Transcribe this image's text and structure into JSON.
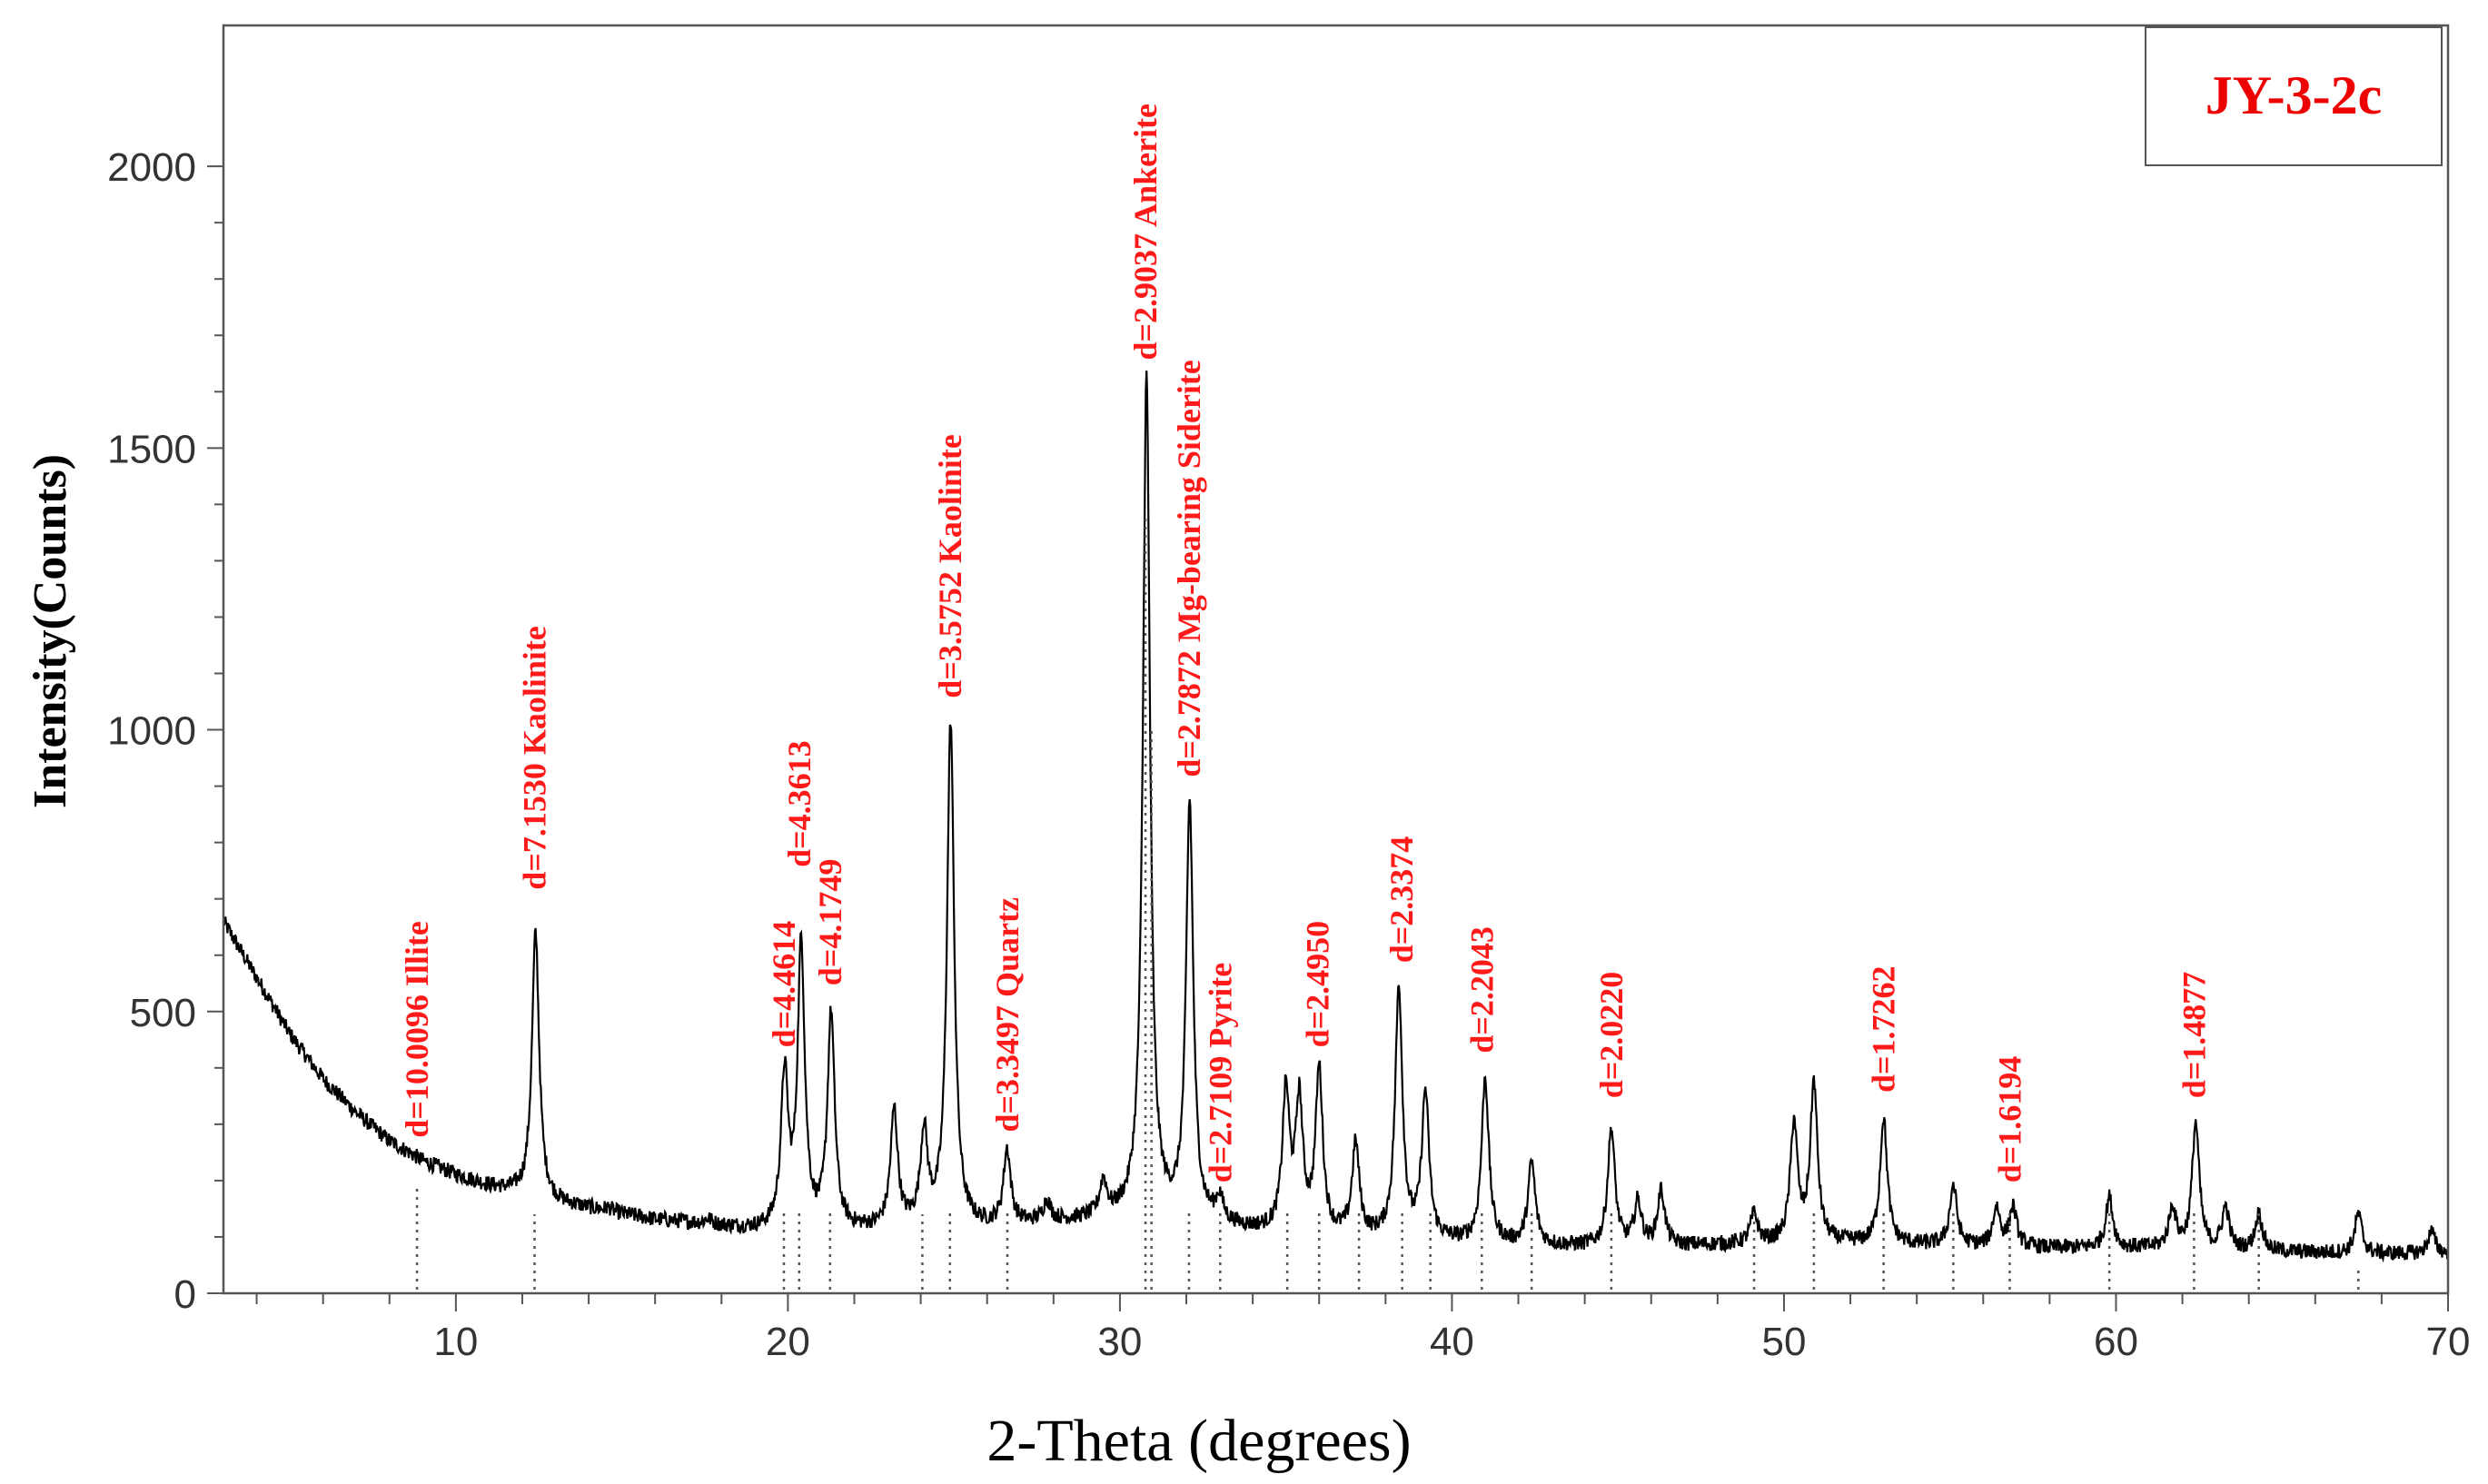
{
  "chart_data": {
    "type": "line",
    "title": "",
    "sample_label": "JY-3-2c",
    "xlabel": "2-Theta (degrees)",
    "ylabel": "Intensity(Counts)",
    "xlim": [
      3,
      70
    ],
    "ylim": [
      0,
      2250
    ],
    "x_ticks": [
      10,
      20,
      30,
      40,
      50,
      60,
      70
    ],
    "y_ticks": [
      0,
      500,
      1000,
      1500,
      2000
    ],
    "grid": false,
    "legend": "none",
    "colors": {
      "line": "#000000",
      "annotation": "#ff1a1a",
      "sample_label": "#ee0000",
      "reference_marks": "#555555"
    },
    "background": [
      [
        3.0,
        660
      ],
      [
        3.5,
        610
      ],
      [
        4.0,
        560
      ],
      [
        5.0,
        460
      ],
      [
        6.0,
        380
      ],
      [
        7.0,
        320
      ],
      [
        8.0,
        270
      ],
      [
        9.0,
        235
      ],
      [
        10.0,
        210
      ],
      [
        11.0,
        190
      ],
      [
        12.0,
        175
      ],
      [
        13.0,
        160
      ],
      [
        14.0,
        150
      ],
      [
        15.0,
        140
      ],
      [
        16.0,
        130
      ],
      [
        17.0,
        125
      ],
      [
        18.0,
        118
      ],
      [
        19.0,
        112
      ],
      [
        20.0,
        110
      ],
      [
        22.0,
        110
      ],
      [
        24.0,
        115
      ],
      [
        26.0,
        115
      ],
      [
        28.0,
        125
      ],
      [
        30.0,
        130
      ],
      [
        32.0,
        125
      ],
      [
        34.0,
        110
      ],
      [
        36.0,
        100
      ],
      [
        38.0,
        95
      ],
      [
        40.0,
        90
      ],
      [
        42.0,
        85
      ],
      [
        44.0,
        82
      ],
      [
        46.0,
        82
      ],
      [
        48.0,
        85
      ],
      [
        50.0,
        88
      ],
      [
        52.0,
        88
      ],
      [
        54.0,
        85
      ],
      [
        56.0,
        82
      ],
      [
        58.0,
        80
      ],
      [
        60.0,
        80
      ],
      [
        62.0,
        78
      ],
      [
        64.0,
        75
      ],
      [
        66.0,
        72
      ],
      [
        68.0,
        70
      ],
      [
        70.0,
        70
      ]
    ],
    "peaks": [
      {
        "x": 8.9,
        "y": 200
      },
      {
        "x": 12.4,
        "y": 640
      },
      {
        "x": 14.6,
        "y": 150
      },
      {
        "x": 17.6,
        "y": 130
      },
      {
        "x": 19.9,
        "y": 380
      },
      {
        "x": 20.4,
        "y": 610
      },
      {
        "x": 21.3,
        "y": 490
      },
      {
        "x": 23.2,
        "y": 320
      },
      {
        "x": 24.1,
        "y": 280
      },
      {
        "x": 24.9,
        "y": 1010
      },
      {
        "x": 26.6,
        "y": 250
      },
      {
        "x": 27.8,
        "y": 160
      },
      {
        "x": 29.5,
        "y": 190
      },
      {
        "x": 30.8,
        "y": 1620
      },
      {
        "x": 32.1,
        "y": 860
      },
      {
        "x": 33.0,
        "y": 160
      },
      {
        "x": 35.0,
        "y": 350
      },
      {
        "x": 35.4,
        "y": 330
      },
      {
        "x": 36.0,
        "y": 390
      },
      {
        "x": 37.1,
        "y": 260
      },
      {
        "x": 38.4,
        "y": 540
      },
      {
        "x": 39.2,
        "y": 350
      },
      {
        "x": 41.0,
        "y": 380
      },
      {
        "x": 42.4,
        "y": 230
      },
      {
        "x": 44.8,
        "y": 290
      },
      {
        "x": 45.6,
        "y": 160
      },
      {
        "x": 46.3,
        "y": 180
      },
      {
        "x": 49.1,
        "y": 140
      },
      {
        "x": 50.3,
        "y": 300
      },
      {
        "x": 50.9,
        "y": 370
      },
      {
        "x": 53.0,
        "y": 310
      },
      {
        "x": 55.1,
        "y": 190
      },
      {
        "x": 56.4,
        "y": 150
      },
      {
        "x": 56.9,
        "y": 150
      },
      {
        "x": 59.8,
        "y": 170
      },
      {
        "x": 61.7,
        "y": 150
      },
      {
        "x": 62.4,
        "y": 300
      },
      {
        "x": 63.3,
        "y": 150
      },
      {
        "x": 64.3,
        "y": 140
      },
      {
        "x": 67.3,
        "y": 140
      },
      {
        "x": 69.5,
        "y": 110
      }
    ],
    "reference_lines": [
      {
        "x": 8.83,
        "top": 190
      },
      {
        "x": 12.37,
        "top": 140
      },
      {
        "x": 19.88,
        "top": 150
      },
      {
        "x": 20.34,
        "top": 150
      },
      {
        "x": 21.27,
        "top": 150
      },
      {
        "x": 24.05,
        "top": 140
      },
      {
        "x": 24.88,
        "top": 150
      },
      {
        "x": 26.61,
        "top": 150
      },
      {
        "x": 30.77,
        "top": 1380
      },
      {
        "x": 30.95,
        "top": 1000
      },
      {
        "x": 32.08,
        "top": 150
      },
      {
        "x": 33.02,
        "top": 150
      },
      {
        "x": 35.04,
        "top": 150
      },
      {
        "x": 36.0,
        "top": 150
      },
      {
        "x": 37.2,
        "top": 150
      },
      {
        "x": 38.5,
        "top": 150
      },
      {
        "x": 39.35,
        "top": 150
      },
      {
        "x": 40.9,
        "top": 150
      },
      {
        "x": 42.4,
        "top": 150
      },
      {
        "x": 44.8,
        "top": 150
      },
      {
        "x": 49.1,
        "top": 150
      },
      {
        "x": 50.9,
        "top": 150
      },
      {
        "x": 53.0,
        "top": 150
      },
      {
        "x": 55.1,
        "top": 150
      },
      {
        "x": 56.8,
        "top": 150
      },
      {
        "x": 59.8,
        "top": 150
      },
      {
        "x": 62.35,
        "top": 150
      },
      {
        "x": 64.3,
        "top": 150
      },
      {
        "x": 67.3,
        "top": 50
      }
    ],
    "annotations": [
      {
        "text": "d=10.0096 Illite",
        "x": 8.83,
        "y": 260
      },
      {
        "text": "d=7.1530 Kaolinite",
        "x": 12.37,
        "y": 700
      },
      {
        "text": "d=4.4614",
        "x": 19.88,
        "y": 420
      },
      {
        "text": "d=4.3613",
        "x": 20.34,
        "y": 740
      },
      {
        "text": "d=4.1749",
        "x": 21.27,
        "y": 530
      },
      {
        "text": "d=3.5752 Kaolinite",
        "x": 24.88,
        "y": 1040
      },
      {
        "text": "d=3.3497 Quartz",
        "x": 26.61,
        "y": 270
      },
      {
        "text": "d=2.9037 Ankerite",
        "x": 30.77,
        "y": 1640
      },
      {
        "text": "d=2.7872 Mg-bearing Siderite",
        "x": 32.08,
        "y": 900
      },
      {
        "text": "d=2.7109 Pyrite",
        "x": 33.02,
        "y": 180
      },
      {
        "text": "d=2.4950",
        "x": 35.95,
        "y": 420
      },
      {
        "text": "d=2.3374",
        "x": 38.48,
        "y": 570
      },
      {
        "text": "d=2.2043",
        "x": 40.9,
        "y": 410
      },
      {
        "text": "d=2.0220",
        "x": 44.8,
        "y": 330
      },
      {
        "text": "d=1.7262",
        "x": 53.0,
        "y": 340
      },
      {
        "text": "d=1.6194",
        "x": 56.8,
        "y": 180
      },
      {
        "text": "d=1.4877",
        "x": 62.35,
        "y": 330
      }
    ]
  }
}
